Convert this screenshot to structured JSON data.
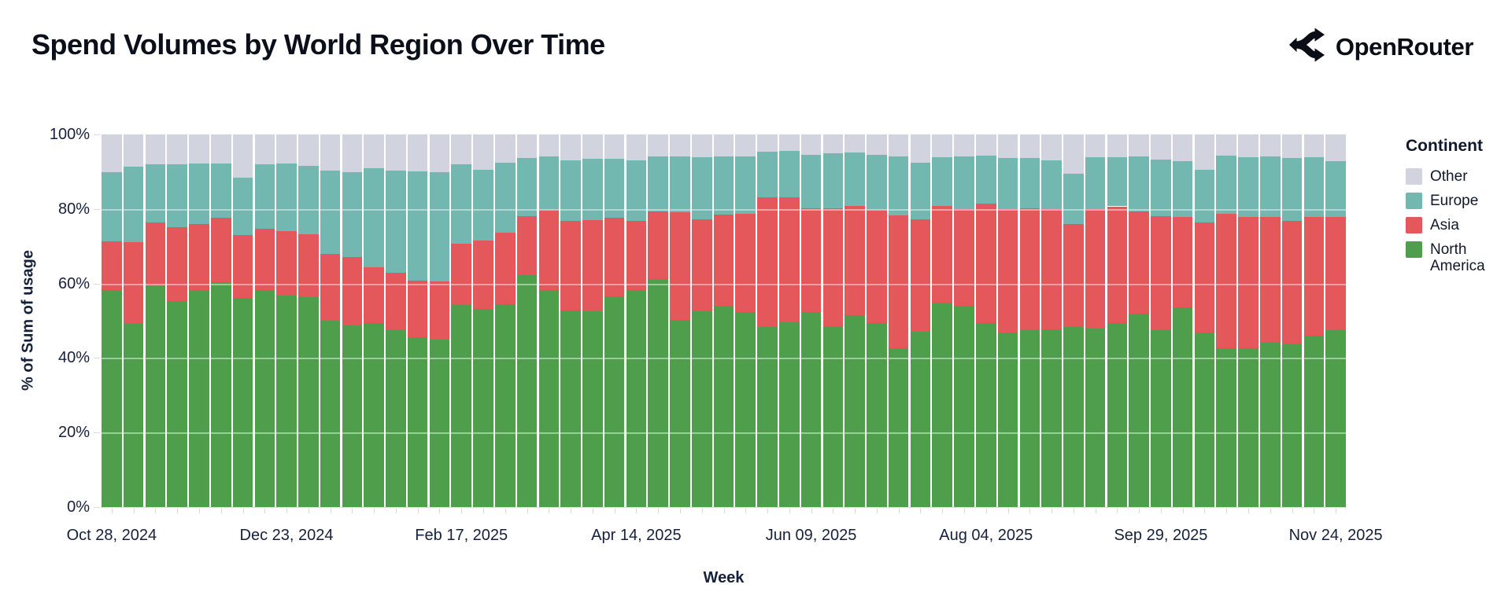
{
  "header": {
    "title": "Spend Volumes by World Region Over Time",
    "brand": "OpenRouter"
  },
  "legend": {
    "title": "Continent",
    "items": [
      {
        "label": "Other",
        "color": "#d1d4df"
      },
      {
        "label": "Europe",
        "color": "#72b7b0"
      },
      {
        "label": "Asia",
        "color": "#e4575a"
      },
      {
        "label": "North America",
        "color": "#4f9e4c"
      }
    ]
  },
  "chart_data": {
    "type": "bar",
    "stacked": true,
    "normalized_percent": true,
    "title": "Spend Volumes by World Region Over Time",
    "xlabel": "Week",
    "ylabel": "% of Sum of usage",
    "ylim": [
      0,
      100
    ],
    "y_ticks": [
      "0%",
      "20%",
      "40%",
      "60%",
      "80%",
      "100%"
    ],
    "x_label_every": 8,
    "x_tick_labels": [
      "Oct 28, 2024",
      "Dec 23, 2024",
      "Feb 17, 2025",
      "Apr 14, 2025",
      "Jun 09, 2025",
      "Aug 04, 2025",
      "Sep 29, 2025",
      "Nov 24, 2025"
    ],
    "legend_title": "Continent",
    "legend_position": "right",
    "grid": false,
    "x": [
      "2024-10-28",
      "2024-11-04",
      "2024-11-11",
      "2024-11-18",
      "2024-11-25",
      "2024-12-02",
      "2024-12-09",
      "2024-12-16",
      "2024-12-23",
      "2024-12-30",
      "2025-01-06",
      "2025-01-13",
      "2025-01-20",
      "2025-01-27",
      "2025-02-03",
      "2025-02-10",
      "2025-02-17",
      "2025-02-24",
      "2025-03-03",
      "2025-03-10",
      "2025-03-17",
      "2025-03-24",
      "2025-03-31",
      "2025-04-07",
      "2025-04-14",
      "2025-04-21",
      "2025-04-28",
      "2025-05-05",
      "2025-05-12",
      "2025-05-19",
      "2025-05-26",
      "2025-06-02",
      "2025-06-09",
      "2025-06-16",
      "2025-06-23",
      "2025-06-30",
      "2025-07-07",
      "2025-07-14",
      "2025-07-21",
      "2025-07-28",
      "2025-08-04",
      "2025-08-11",
      "2025-08-18",
      "2025-08-25",
      "2025-09-01",
      "2025-09-08",
      "2025-09-15",
      "2025-09-22",
      "2025-09-29",
      "2025-10-06",
      "2025-10-13",
      "2025-10-20",
      "2025-10-27",
      "2025-11-03",
      "2025-11-10",
      "2025-11-17",
      "2025-11-24"
    ],
    "series": [
      {
        "name": "North America",
        "color": "#4f9e4c",
        "values": [
          58.3,
          49.2,
          59.2,
          55.2,
          58.3,
          60.3,
          56.2,
          58.3,
          56.8,
          56.4,
          50.0,
          48.7,
          49.4,
          47.5,
          45.5,
          45.0,
          54.2,
          53.1,
          54.4,
          62.3,
          58.2,
          52.8,
          52.5,
          56.6,
          58.3,
          61.2,
          50.3,
          52.6,
          54.0,
          52.4,
          48.3,
          49.6,
          52.4,
          48.5,
          51.5,
          49.3,
          42.7,
          47.1,
          54.9,
          54.0,
          49.3,
          46.9,
          47.5,
          47.6,
          48.4,
          47.8,
          49.3,
          51.9,
          47.5,
          53.6,
          46.8,
          42.6,
          42.7,
          44.0,
          43.8,
          45.9,
          47.5
        ]
      },
      {
        "name": "Asia",
        "color": "#e4575a",
        "values": [
          13.0,
          21.9,
          17.2,
          20.0,
          17.7,
          17.4,
          16.9,
          16.4,
          17.2,
          16.8,
          18.0,
          18.4,
          15.0,
          15.4,
          15.2,
          15.5,
          16.5,
          18.5,
          19.3,
          15.8,
          21.5,
          24.1,
          24.6,
          21.0,
          18.6,
          18.1,
          28.8,
          24.7,
          24.5,
          26.2,
          34.8,
          33.5,
          27.8,
          31.6,
          29.3,
          30.4,
          35.6,
          30.2,
          26.0,
          26.0,
          32.1,
          33.1,
          32.6,
          32.3,
          27.5,
          32.1,
          31.4,
          27.4,
          30.5,
          24.2,
          29.6,
          36.0,
          35.2,
          33.8,
          33.1,
          32.0,
          30.3
        ]
      },
      {
        "name": "Europe",
        "color": "#72b7b0",
        "values": [
          18.6,
          20.3,
          15.5,
          16.8,
          16.1,
          14.5,
          15.4,
          17.2,
          18.3,
          18.3,
          22.2,
          22.8,
          26.6,
          27.4,
          29.4,
          29.4,
          21.3,
          19.0,
          18.7,
          15.5,
          14.4,
          16.2,
          16.4,
          15.8,
          16.2,
          14.8,
          14.9,
          16.5,
          15.5,
          15.6,
          12.3,
          12.5,
          14.4,
          14.8,
          14.3,
          14.8,
          15.8,
          15.2,
          13.0,
          14.1,
          13.0,
          13.6,
          13.6,
          13.2,
          13.5,
          13.9,
          13.2,
          14.9,
          15.3,
          15.1,
          14.2,
          15.7,
          16.0,
          16.4,
          16.7,
          16.0,
          15.1
        ]
      },
      {
        "name": "Other",
        "color": "#d1d4df",
        "values": [
          10.1,
          8.6,
          8.1,
          8.0,
          7.9,
          7.8,
          11.5,
          8.1,
          7.7,
          8.5,
          9.8,
          10.1,
          9.0,
          9.7,
          9.9,
          10.1,
          8.0,
          9.4,
          7.6,
          6.4,
          5.9,
          6.9,
          6.5,
          6.6,
          6.9,
          5.9,
          6.0,
          6.2,
          6.0,
          5.8,
          4.6,
          4.4,
          5.4,
          5.1,
          4.9,
          5.5,
          5.9,
          7.5,
          6.1,
          5.9,
          5.6,
          6.4,
          6.3,
          6.9,
          10.6,
          6.2,
          6.1,
          5.8,
          6.7,
          7.1,
          9.4,
          5.7,
          6.1,
          5.8,
          6.4,
          6.1,
          7.1
        ]
      }
    ]
  }
}
